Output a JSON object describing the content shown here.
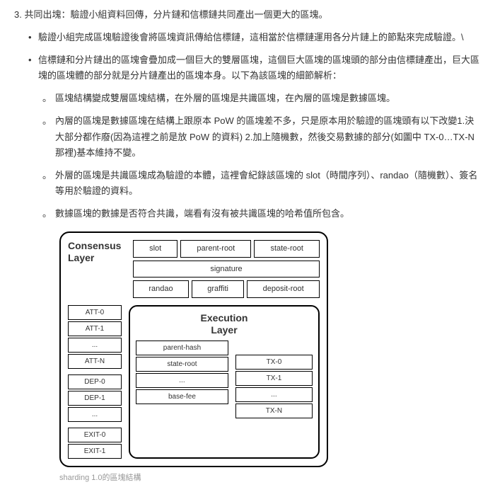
{
  "heading": "3. 共同出塊：驗證小組資料回傳，分片鏈和信標鏈共同產出一個更大的區塊。",
  "bullets": {
    "b1": "驗證小組完成區塊驗證後會將區塊資訊傳給信標鏈，這相當於信標鏈運用各分片鏈上的節點來完成驗證。\\",
    "b2": "信標鏈和分片鏈出的區塊會疊加成一個巨大的雙層區塊，這個巨大區塊的區塊頭的部分由信標鏈產出，巨大區塊的區塊體的部分就是分片鏈產出的區塊本身。以下為該區塊的細節解析："
  },
  "subbullets": {
    "s1": "區塊結構變成雙層區塊結構，在外層的區塊是共識區塊，在內層的區塊是數據區塊。",
    "s2": "內層的區塊是數據區塊在結構上跟原本 PoW 的區塊差不多，只是原本用於驗證的區塊頭有以下改變1.決大部分都作廢(因為這裡之前是放 PoW 的資料) 2.加上隨機數，然後交易數據的部分(如圖中 TX-0…TX-N 那裡)基本維持不變。",
    "s3": "外層的區塊是共識區塊成為驗證的本體，這裡會紀錄該區塊的 slot（時間序列）、randao（隨機數）、簽名等用於驗證的資料。",
    "s4": "數據區塊的數據是否符合共識，端看有沒有被共識區塊的哈希值所包含。"
  },
  "diagram": {
    "consensus_title_l1": "Consensus",
    "consensus_title_l2": "Layer",
    "execution_title_l1": "Execution",
    "execution_title_l2": "Layer",
    "header_row1": {
      "c1": "slot",
      "c2": "parent-root",
      "c3": "state-root"
    },
    "signature": "signature",
    "header_row3": {
      "c1": "randao",
      "c2": "graffiti",
      "c3": "deposit-root"
    },
    "att": {
      "r0": "ATT-0",
      "r1": "ATT-1",
      "r2": "...",
      "r3": "ATT-N"
    },
    "dep": {
      "r0": "DEP-0",
      "r1": "DEP-1",
      "r2": "..."
    },
    "exit": {
      "r0": "EXIT-0",
      "r1": "EXIT-1"
    },
    "exec_left": {
      "r0": "parent-hash",
      "r1": "state-root",
      "r2": "...",
      "r3": "base-fee"
    },
    "tx": {
      "r0": "TX-0",
      "r1": "TX-1",
      "r2": "...",
      "r3": "TX-N"
    }
  },
  "caption": "sharding 1.0的區塊結構"
}
